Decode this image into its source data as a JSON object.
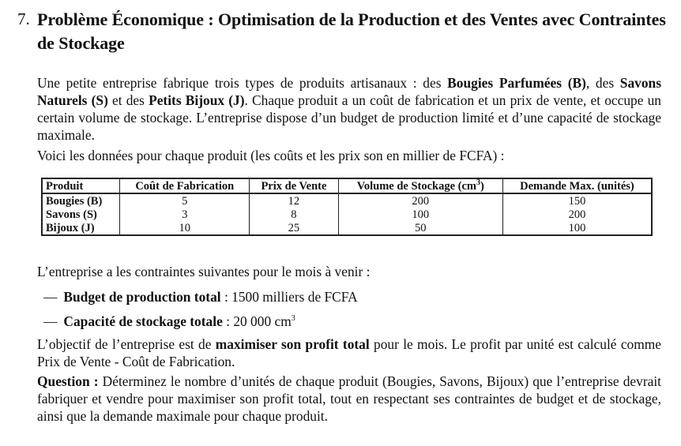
{
  "exercise": {
    "number": "7.",
    "title": "Problème Économique : Optimisation de la Production et des Ventes avec Contraintes de Stockage"
  },
  "intro": {
    "p1_a": "Une petite entreprise fabrique trois types de produits artisanaux : des ",
    "p1_b1": "Bougies Parfumées (B)",
    "p1_c": ", des ",
    "p1_b2": "Savons Naturels (S)",
    "p1_d": " et des ",
    "p1_b3": "Petits Bijoux (J)",
    "p1_e": ". Chaque produit a un coût de fabrication et un prix de vente, et occupe un certain volume de stockage. L’entreprise dispose d’un budget de production limité et d’une capacité de stockage maximale.",
    "p2": "Voici les données pour chaque produit (les coûts et les prix son en millier de FCFA) :"
  },
  "table": {
    "headers": {
      "product": "Produit",
      "cost": "Coût de Fabrication",
      "price": "Prix de Vente",
      "volume_prefix": "Volume de Stockage (cm",
      "volume_sup": "3",
      "volume_suffix": ")",
      "demand": "Demande Max. (unités)"
    },
    "rows": [
      {
        "product": "Bougies (B)",
        "cost": "5",
        "price": "12",
        "volume": "200",
        "demand": "150"
      },
      {
        "product": "Savons (S)",
        "cost": "3",
        "price": "8",
        "volume": "100",
        "demand": "200"
      },
      {
        "product": "Bijoux (J)",
        "cost": "10",
        "price": "25",
        "volume": "50",
        "demand": "100"
      }
    ]
  },
  "constraints": {
    "intro": "L’entreprise a les contraintes suivantes pour le mois à venir :",
    "dash": "—",
    "budget_label": "Budget de production total",
    "budget_value": " : 1500 milliers de FCFA",
    "storage_label": "Capacité de stockage totale",
    "storage_value": " : 20 000 cm",
    "storage_sup": "3"
  },
  "objective": {
    "a": "L’objectif de l’entreprise est de ",
    "bold": "maximiser son profit total",
    "b": " pour le mois. Le profit par unité est calculé comme Prix de Vente - Coût de Fabrication."
  },
  "question": {
    "label": "Question :",
    "text": " Déterminez le nombre d’unités de chaque produit (Bougies, Savons, Bijoux) que l’entreprise devrait fabriquer et vendre pour maximiser son profit total, tout en respectant ses contraintes de budget et de stockage, ainsi que la demande maximale pour chaque produit."
  }
}
